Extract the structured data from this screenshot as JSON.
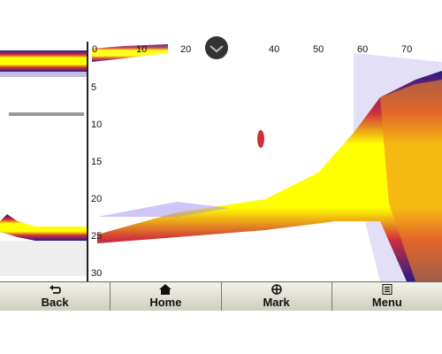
{
  "screen": {
    "range_scale": [
      0,
      10,
      20,
      40,
      50,
      60,
      70
    ],
    "depth_scale": [
      5,
      10,
      15,
      20,
      25,
      30
    ],
    "buttons": [
      {
        "label": "Back"
      },
      {
        "label": "Home"
      },
      {
        "label": "Mark"
      },
      {
        "label": "Menu"
      }
    ]
  }
}
